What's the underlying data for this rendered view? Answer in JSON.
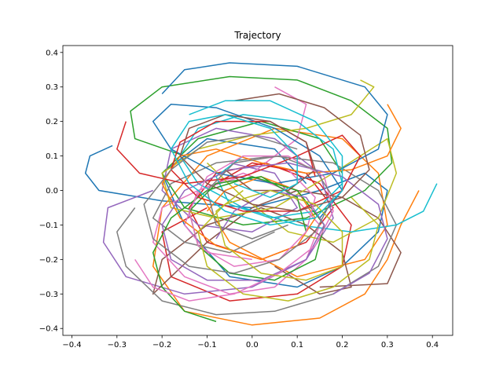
{
  "chart_data": {
    "type": "line",
    "title": "Trajectory",
    "xlabel": "",
    "ylabel": "",
    "xlim": [
      -0.42,
      0.445
    ],
    "ylim": [
      -0.42,
      0.42
    ],
    "xticks": [
      -0.4,
      -0.3,
      -0.2,
      -0.1,
      0.0,
      0.1,
      0.2,
      0.3,
      0.4
    ],
    "yticks": [
      -0.4,
      -0.3,
      -0.2,
      -0.1,
      0.0,
      0.1,
      0.2,
      0.3,
      0.4
    ],
    "xtick_labels": [
      "−0.4",
      "−0.3",
      "−0.2",
      "−0.1",
      "0.0",
      "0.1",
      "0.2",
      "0.3",
      "0.4"
    ],
    "ytick_labels": [
      "−0.4",
      "−0.3",
      "−0.2",
      "−0.1",
      "0.0",
      "0.1",
      "0.2",
      "0.3",
      "0.4"
    ],
    "grid": false,
    "legend": false,
    "colors": [
      "#1f77b4",
      "#ff7f0e",
      "#2ca02c",
      "#d62728",
      "#9467bd",
      "#8c564b",
      "#e377c2",
      "#7f7f7f",
      "#bcbd22",
      "#17becf"
    ],
    "series": [
      {
        "x": [
          -0.31,
          -0.36,
          -0.37,
          -0.34,
          -0.2,
          0.0,
          0.15,
          0.25,
          0.3,
          0.28,
          0.2,
          0.1,
          -0.05,
          -0.15,
          -0.2,
          -0.1,
          0.05,
          0.12
        ],
        "y": [
          0.13,
          0.1,
          0.05,
          0.0,
          -0.03,
          -0.05,
          0.0,
          0.05,
          0.0,
          -0.12,
          -0.22,
          -0.28,
          -0.25,
          -0.1,
          0.05,
          0.15,
          0.12,
          0.02
        ]
      },
      {
        "x": [
          0.37,
          0.33,
          0.3,
          0.25,
          0.15,
          0.0,
          -0.15,
          -0.22,
          -0.2,
          -0.1,
          0.05,
          0.2,
          0.28,
          0.3,
          0.25,
          0.1,
          -0.05,
          -0.12
        ],
        "y": [
          0.0,
          -0.1,
          -0.2,
          -0.3,
          -0.37,
          -0.39,
          -0.35,
          -0.22,
          -0.05,
          0.1,
          0.18,
          0.15,
          0.05,
          -0.1,
          -0.2,
          -0.25,
          -0.15,
          0.0
        ]
      },
      {
        "x": [
          -0.15,
          -0.26,
          -0.27,
          -0.2,
          -0.05,
          0.1,
          0.22,
          0.3,
          0.31,
          0.25,
          0.12,
          -0.02,
          -0.15,
          -0.2,
          -0.12,
          0.02,
          0.15,
          0.2
        ],
        "y": [
          0.1,
          0.15,
          0.23,
          0.3,
          0.33,
          0.32,
          0.26,
          0.18,
          0.08,
          0.0,
          -0.08,
          -0.1,
          -0.05,
          0.05,
          0.15,
          0.2,
          0.15,
          0.05
        ]
      },
      {
        "x": [
          -0.1,
          -0.2,
          -0.18,
          -0.05,
          0.1,
          0.2,
          0.22,
          0.15,
          0.03,
          -0.08,
          -0.14,
          -0.1,
          0.02,
          0.12,
          0.18,
          0.12,
          0.0,
          -0.08
        ],
        "y": [
          -0.05,
          -0.12,
          -0.25,
          -0.32,
          -0.3,
          -0.22,
          -0.1,
          0.02,
          0.08,
          0.05,
          -0.05,
          -0.15,
          -0.2,
          -0.15,
          -0.05,
          0.05,
          0.08,
          0.02
        ]
      },
      {
        "x": [
          -0.22,
          -0.32,
          -0.33,
          -0.28,
          -0.15,
          0.0,
          0.12,
          0.18,
          0.15,
          0.05,
          -0.08,
          -0.18,
          -0.2,
          -0.12,
          0.0,
          0.1,
          0.05,
          -0.05
        ],
        "y": [
          0.0,
          -0.05,
          -0.15,
          -0.25,
          -0.3,
          -0.28,
          -0.2,
          -0.08,
          0.05,
          0.15,
          0.18,
          0.12,
          0.0,
          -0.1,
          -0.12,
          -0.05,
          0.05,
          0.08
        ]
      },
      {
        "x": [
          0.15,
          0.3,
          0.33,
          0.28,
          0.2,
          0.1,
          0.0,
          -0.1,
          -0.18,
          -0.22,
          -0.2,
          -0.1,
          0.02,
          0.12,
          0.2,
          0.22,
          0.15,
          0.05
        ],
        "y": [
          -0.28,
          -0.27,
          -0.18,
          -0.08,
          -0.02,
          0.0,
          -0.05,
          -0.15,
          -0.25,
          -0.3,
          -0.2,
          -0.1,
          -0.05,
          -0.1,
          -0.18,
          -0.28,
          -0.3,
          -0.22
        ]
      },
      {
        "x": [
          0.05,
          0.12,
          0.1,
          0.0,
          -0.12,
          -0.2,
          -0.22,
          -0.15,
          -0.05,
          0.05,
          0.12,
          0.15,
          0.08,
          -0.02,
          -0.12,
          -0.15,
          -0.1,
          0.0
        ],
        "y": [
          0.3,
          0.25,
          0.15,
          0.05,
          0.0,
          -0.05,
          -0.15,
          -0.25,
          -0.3,
          -0.28,
          -0.2,
          -0.1,
          0.0,
          0.05,
          0.0,
          -0.1,
          -0.18,
          -0.2
        ]
      },
      {
        "x": [
          -0.26,
          -0.3,
          -0.28,
          -0.2,
          -0.08,
          0.05,
          0.18,
          0.28,
          0.32,
          0.28,
          0.18,
          0.05,
          -0.08,
          -0.18,
          -0.22,
          -0.15,
          -0.05,
          0.05
        ],
        "y": [
          -0.05,
          -0.12,
          -0.22,
          -0.32,
          -0.36,
          -0.35,
          -0.3,
          -0.22,
          -0.1,
          0.0,
          0.08,
          0.1,
          0.08,
          0.02,
          -0.08,
          -0.15,
          -0.18,
          -0.12
        ]
      },
      {
        "x": [
          0.24,
          0.27,
          0.22,
          0.12,
          0.0,
          -0.12,
          -0.2,
          -0.18,
          -0.08,
          0.05,
          0.18,
          0.3,
          0.32,
          0.28,
          0.18,
          0.08,
          -0.02,
          -0.1
        ],
        "y": [
          0.32,
          0.3,
          0.22,
          0.18,
          0.16,
          0.12,
          0.05,
          -0.05,
          -0.08,
          -0.05,
          0.05,
          0.15,
          0.05,
          -0.08,
          -0.15,
          -0.12,
          -0.02,
          0.08
        ]
      },
      {
        "x": [
          0.41,
          0.38,
          0.32,
          0.22,
          0.1,
          -0.02,
          -0.12,
          -0.16,
          -0.12,
          -0.02,
          0.1,
          0.18,
          0.2,
          0.14,
          0.04,
          -0.05,
          -0.08,
          -0.02
        ],
        "y": [
          0.02,
          -0.06,
          -0.1,
          -0.12,
          -0.1,
          -0.05,
          0.02,
          0.1,
          0.18,
          0.22,
          0.2,
          0.12,
          0.02,
          -0.06,
          -0.08,
          -0.04,
          0.04,
          0.1
        ]
      },
      {
        "x": [
          -0.2,
          -0.15,
          -0.05,
          0.1,
          0.25,
          0.3,
          0.28,
          0.18,
          0.05,
          -0.08,
          -0.18,
          -0.22,
          -0.18,
          -0.08,
          0.05,
          0.15,
          0.2,
          0.15
        ],
        "y": [
          0.28,
          0.35,
          0.37,
          0.36,
          0.3,
          0.22,
          0.12,
          0.05,
          0.02,
          0.05,
          0.12,
          0.2,
          0.25,
          0.24,
          0.18,
          0.1,
          0.0,
          -0.08
        ]
      },
      {
        "x": [
          0.3,
          0.33,
          0.3,
          0.22,
          0.12,
          0.02,
          -0.08,
          -0.16,
          -0.2,
          -0.16,
          -0.08,
          0.02,
          0.1,
          0.14,
          0.1,
          0.02,
          -0.06,
          -0.1
        ],
        "y": [
          0.25,
          0.18,
          0.1,
          0.06,
          0.05,
          0.08,
          0.12,
          0.1,
          0.02,
          -0.08,
          -0.16,
          -0.2,
          -0.16,
          -0.08,
          0.0,
          0.04,
          0.0,
          -0.06
        ]
      },
      {
        "x": [
          -0.08,
          -0.15,
          -0.2,
          -0.22,
          -0.18,
          -0.1,
          0.0,
          0.1,
          0.16,
          0.14,
          0.05,
          -0.05,
          -0.12,
          -0.14,
          -0.08,
          0.02,
          0.1,
          0.12
        ],
        "y": [
          -0.38,
          -0.35,
          -0.28,
          -0.18,
          -0.08,
          0.0,
          0.04,
          0.0,
          -0.1,
          -0.2,
          -0.26,
          -0.24,
          -0.16,
          -0.06,
          0.02,
          0.04,
          -0.02,
          -0.12
        ]
      },
      {
        "x": [
          -0.28,
          -0.3,
          -0.25,
          -0.15,
          -0.02,
          0.1,
          0.2,
          0.24,
          0.2,
          0.1,
          -0.02,
          -0.12,
          -0.18,
          -0.16,
          -0.08,
          0.04,
          0.12,
          0.14
        ],
        "y": [
          0.2,
          0.12,
          0.05,
          0.02,
          0.04,
          0.1,
          0.16,
          0.1,
          0.0,
          -0.06,
          -0.06,
          -0.02,
          0.06,
          0.14,
          0.2,
          0.2,
          0.14,
          0.04
        ]
      },
      {
        "x": [
          0.18,
          0.26,
          0.3,
          0.28,
          0.2,
          0.08,
          -0.05,
          -0.15,
          -0.2,
          -0.18,
          -0.1,
          0.02,
          0.12,
          0.16,
          0.12,
          0.04,
          -0.04,
          -0.08
        ],
        "y": [
          -0.3,
          -0.24,
          -0.14,
          -0.04,
          0.04,
          0.08,
          0.06,
          0.0,
          -0.1,
          -0.2,
          -0.26,
          -0.26,
          -0.2,
          -0.1,
          -0.02,
          0.0,
          -0.06,
          -0.14
        ]
      },
      {
        "x": [
          -0.04,
          0.06,
          0.16,
          0.24,
          0.26,
          0.2,
          0.1,
          0.0,
          -0.1,
          -0.16,
          -0.14,
          -0.06,
          0.04,
          0.12,
          0.14,
          0.08,
          0.0,
          -0.06
        ],
        "y": [
          0.26,
          0.28,
          0.24,
          0.16,
          0.06,
          -0.02,
          -0.06,
          -0.04,
          0.02,
          0.1,
          0.18,
          0.22,
          0.2,
          0.14,
          0.06,
          0.0,
          0.0,
          0.06
        ]
      },
      {
        "x": [
          -0.26,
          -0.22,
          -0.14,
          -0.04,
          0.06,
          0.14,
          0.18,
          0.16,
          0.08,
          -0.02,
          -0.1,
          -0.14,
          -0.12,
          -0.04,
          0.06,
          0.12,
          0.14,
          0.08
        ],
        "y": [
          -0.2,
          -0.28,
          -0.32,
          -0.3,
          -0.24,
          -0.16,
          -0.06,
          0.04,
          0.1,
          0.1,
          0.04,
          -0.06,
          -0.16,
          -0.22,
          -0.2,
          -0.12,
          -0.02,
          0.06
        ]
      },
      {
        "x": [
          0.1,
          0.0,
          -0.1,
          -0.18,
          -0.24,
          -0.22,
          -0.14,
          -0.04,
          0.06,
          0.14,
          0.18,
          0.14,
          0.06,
          -0.04,
          -0.1,
          -0.08,
          0.0,
          0.08
        ],
        "y": [
          0.12,
          0.16,
          0.14,
          0.06,
          -0.04,
          -0.14,
          -0.22,
          -0.24,
          -0.2,
          -0.12,
          -0.02,
          0.06,
          0.1,
          0.08,
          0.0,
          -0.1,
          -0.14,
          -0.1
        ]
      },
      {
        "x": [
          0.22,
          0.28,
          0.26,
          0.18,
          0.08,
          -0.02,
          -0.1,
          -0.12,
          -0.06,
          0.04,
          0.14,
          0.2,
          0.2,
          0.12,
          0.02,
          -0.06,
          -0.08,
          -0.02
        ],
        "y": [
          -0.02,
          -0.1,
          -0.2,
          -0.28,
          -0.32,
          -0.3,
          -0.22,
          -0.12,
          -0.04,
          0.0,
          -0.04,
          -0.12,
          -0.22,
          -0.26,
          -0.24,
          -0.16,
          -0.06,
          0.0
        ]
      },
      {
        "x": [
          -0.14,
          -0.06,
          0.04,
          0.14,
          0.2,
          0.2,
          0.14,
          0.04,
          -0.06,
          -0.14,
          -0.18,
          -0.14,
          -0.06,
          0.04,
          0.1,
          0.1,
          0.04,
          -0.04
        ],
        "y": [
          0.22,
          0.26,
          0.26,
          0.2,
          0.1,
          0.0,
          -0.08,
          -0.1,
          -0.06,
          0.02,
          0.12,
          0.2,
          0.22,
          0.18,
          0.1,
          0.02,
          -0.02,
          0.02
        ]
      }
    ]
  }
}
